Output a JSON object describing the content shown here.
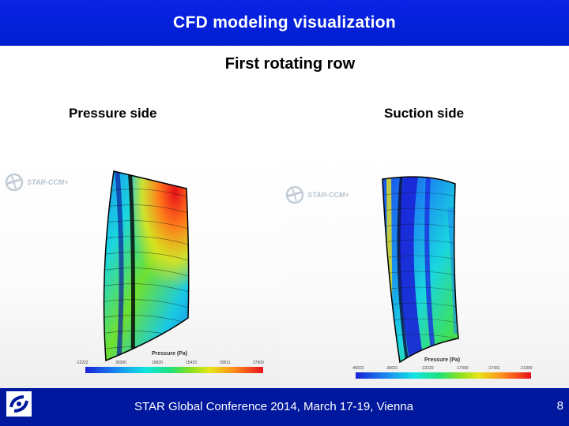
{
  "header": {
    "title": "CFD modeling visualization"
  },
  "subtitle": "First rotating row",
  "panels": [
    {
      "label": "Pressure side",
      "logo_text": "STAR-CCM+",
      "scale_title": "Pressure (Pa)",
      "ticks": [
        "-12222",
        "36300",
        "10820",
        "15423",
        "20011",
        "27900"
      ]
    },
    {
      "label": "Suction side",
      "logo_text": "STAR-CCM+",
      "scale_title": "Pressure (Pa)",
      "ticks": [
        "-45022",
        "-36631",
        "-22220",
        "-17300",
        "-17431",
        "-21900"
      ]
    }
  ],
  "footer": {
    "text": "STAR Global Conference 2014, March 17-19, Vienna",
    "page": "8"
  },
  "colors": {
    "header_bg": "#0a23e6",
    "footer_bg": "#00189d",
    "colormap": [
      "#1a22d6",
      "#1a8cf0",
      "#12e6e0",
      "#21e07a",
      "#7ee024",
      "#e8e419",
      "#ff8b1c",
      "#e8101a"
    ]
  }
}
